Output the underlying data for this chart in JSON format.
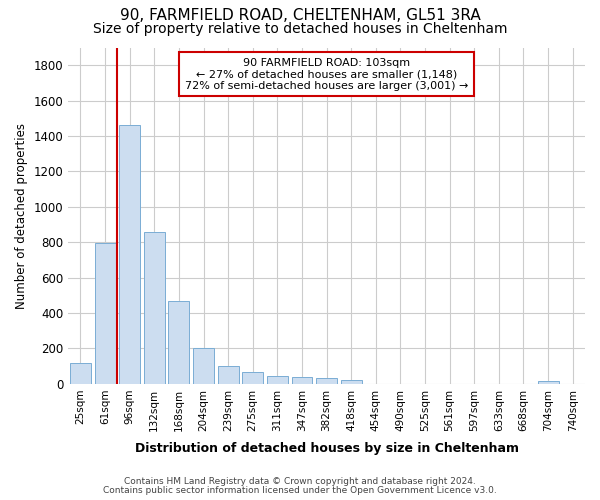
{
  "title1": "90, FARMFIELD ROAD, CHELTENHAM, GL51 3RA",
  "title2": "Size of property relative to detached houses in Cheltenham",
  "xlabel": "Distribution of detached houses by size in Cheltenham",
  "ylabel": "Number of detached properties",
  "categories": [
    "25sqm",
    "61sqm",
    "96sqm",
    "132sqm",
    "168sqm",
    "204sqm",
    "239sqm",
    "275sqm",
    "311sqm",
    "347sqm",
    "382sqm",
    "418sqm",
    "454sqm",
    "490sqm",
    "525sqm",
    "561sqm",
    "597sqm",
    "633sqm",
    "668sqm",
    "704sqm",
    "740sqm"
  ],
  "values": [
    120,
    795,
    1460,
    860,
    470,
    200,
    100,
    65,
    45,
    40,
    32,
    22,
    0,
    0,
    0,
    0,
    0,
    0,
    0,
    15,
    0
  ],
  "bar_color": "#ccddf0",
  "bar_edge_color": "#7aadd4",
  "vline_x": 2.0,
  "vline_color": "#cc0000",
  "annotation_line1": "90 FARMFIELD ROAD: 103sqm",
  "annotation_line2": "← 27% of detached houses are smaller (1,148)",
  "annotation_line3": "72% of semi-detached houses are larger (3,001) →",
  "annotation_box_color": "#cc0000",
  "footer1": "Contains HM Land Registry data © Crown copyright and database right 2024.",
  "footer2": "Contains public sector information licensed under the Open Government Licence v3.0.",
  "ylim": [
    0,
    1900
  ],
  "yticks": [
    0,
    200,
    400,
    600,
    800,
    1000,
    1200,
    1400,
    1600,
    1800
  ],
  "grid_color": "#cccccc",
  "bg_color": "#ffffff",
  "plot_bg_color": "#ffffff",
  "title1_fontsize": 11,
  "title2_fontsize": 10
}
